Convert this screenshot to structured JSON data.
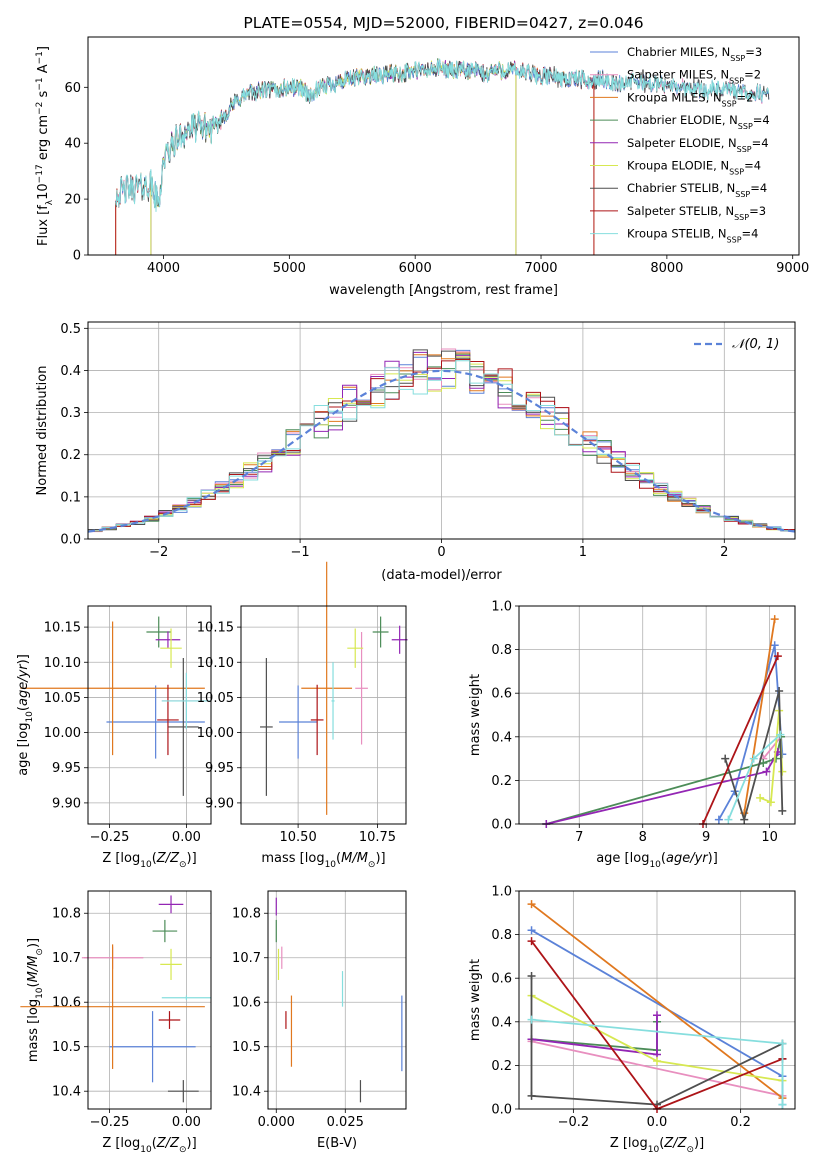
{
  "colors": {
    "s0": "#5b82d8",
    "s1": "#e88fbf",
    "s2": "#e0781f",
    "s3": "#4c8c58",
    "s4": "#9326b4",
    "s5": "#d7e851",
    "s6": "#4f4f4f",
    "s7": "#ad1418",
    "s8": "#86dede",
    "gauss": "#5b82d8"
  },
  "chart_data": [
    {
      "id": "spectrum",
      "type": "line",
      "title": "PLATE=0554, MJD=52000, FIBERID=0427, z=0.046",
      "xlabel": "wavelength [Angstrom, rest frame]",
      "ylabel": "Flux [f_λ 10^-17 erg cm^-2 s^-1 A^-1]",
      "xlim": [
        3400,
        9050
      ],
      "ylim": [
        0,
        78
      ],
      "xticks": [
        "4000",
        "5000",
        "6000",
        "7000",
        "8000",
        "9000"
      ],
      "yticks": [
        "0",
        "20",
        "40",
        "60"
      ],
      "grid": false,
      "legend_position": "top-right",
      "continuum": {
        "x": [
          3620,
          3750,
          3900,
          3960,
          4000,
          4100,
          4200,
          4300,
          4400,
          4500,
          4600,
          4700,
          4800,
          4900,
          5000,
          5100,
          5175,
          5200,
          5300,
          5400,
          5500,
          5600,
          5700,
          5800,
          5900,
          6000,
          6100,
          6200,
          6300,
          6400,
          6500,
          6563,
          6600,
          6700,
          6800,
          6900,
          7000,
          7100,
          7200,
          7300,
          7400,
          7500,
          7600,
          7700,
          7800,
          7900,
          8000,
          8100,
          8200,
          8300,
          8400,
          8500,
          8600,
          8700,
          8810
        ],
        "y": [
          22,
          24,
          25,
          18,
          34,
          41,
          45,
          46,
          45,
          51,
          56,
          58,
          59,
          59,
          60,
          60,
          56,
          58,
          61,
          62,
          63,
          64,
          64,
          65,
          65,
          66,
          66,
          67,
          66,
          66,
          66,
          64,
          66,
          66,
          66,
          65,
          64,
          64,
          63,
          63,
          62,
          63,
          61,
          62,
          62,
          61,
          61,
          60,
          60,
          59,
          59,
          59,
          58,
          58,
          57
        ]
      },
      "series": [
        {
          "name": "Chabrier MILES, N_SSP=3",
          "color": "s0"
        },
        {
          "name": "Salpeter MILES, N_SSP=2",
          "color": "s1"
        },
        {
          "name": "Kroupa MILES, N_SSP=2",
          "color": "s2",
          "range": [
            3620,
            7420
          ]
        },
        {
          "name": "Chabrier ELODIE, N_SSP=4",
          "color": "s3",
          "range": [
            3900,
            6800
          ]
        },
        {
          "name": "Salpeter ELODIE, N_SSP=4",
          "color": "s4",
          "range": [
            3900,
            6800
          ]
        },
        {
          "name": "Kroupa ELODIE, N_SSP=4",
          "color": "s5",
          "range": [
            3900,
            6800
          ]
        },
        {
          "name": "Chabrier STELIB, N_SSP=4",
          "color": "s6"
        },
        {
          "name": "Salpeter STELIB, N_SSP=3",
          "color": "s7",
          "range": [
            3620,
            7420
          ]
        },
        {
          "name": "Kroupa STELIB, N_SSP=4",
          "color": "s8"
        }
      ]
    },
    {
      "id": "residuals",
      "type": "histogram",
      "xlabel": "(data-model)/error",
      "ylabel": "Normed distribution",
      "xlim": [
        -2.5,
        2.5
      ],
      "ylim": [
        0,
        0.515
      ],
      "xticks": [
        "−2",
        "−1",
        "0",
        "1",
        "2"
      ],
      "yticks": [
        "0.0",
        "0.1",
        "0.2",
        "0.3",
        "0.4",
        "0.5"
      ],
      "bin_width": 0.1,
      "grid": true,
      "legend_position": "top-right",
      "legend": "𝒩(0, 1)",
      "series_colors": [
        "s0",
        "s1",
        "s2",
        "s3",
        "s4",
        "s5",
        "s6",
        "s7",
        "s8"
      ]
    },
    {
      "id": "age-vs-Z",
      "type": "errorbar",
      "xlabel": "Z [log10(Z/Z⊙)]",
      "ylabel": "age  [log10(age/yr)]",
      "xlim": [
        -0.32,
        0.08
      ],
      "ylim": [
        9.87,
        10.18
      ],
      "xticks": [
        "−0.25",
        "0.00"
      ],
      "yticks": [
        "9.90",
        "9.95",
        "10.00",
        "10.05",
        "10.10",
        "10.15"
      ],
      "grid": true,
      "points": [
        {
          "color": "s0",
          "x": -0.1,
          "xerr": 0.16,
          "y": 10.015,
          "yerr": 0.052
        },
        {
          "color": "s1",
          "x": 0.0,
          "xerr": 0.08,
          "y": 10.045,
          "yerr": 0.04
        },
        {
          "color": "s2",
          "x": -0.24,
          "xerr": 0.3,
          "y": 10.063,
          "yerr": 0.095
        },
        {
          "color": "s3",
          "x": -0.09,
          "xerr": 0.04,
          "y": 10.143,
          "yerr": 0.022
        },
        {
          "color": "s4",
          "x": -0.06,
          "xerr": 0.04,
          "y": 10.132,
          "yerr": 0.012
        },
        {
          "color": "s5",
          "x": -0.05,
          "xerr": 0.035,
          "y": 10.12,
          "yerr": 0.028
        },
        {
          "color": "s6",
          "x": -0.01,
          "xerr": 0.05,
          "y": 10.008,
          "yerr": 0.098
        },
        {
          "color": "s7",
          "x": -0.06,
          "xerr": 0.035,
          "y": 10.018,
          "yerr": 0.05
        },
        {
          "color": "s8",
          "x": 0.0,
          "xerr": 0.08,
          "y": 10.045,
          "yerr": 0.04
        }
      ]
    },
    {
      "id": "age-vs-mass",
      "type": "errorbar",
      "xlabel": "mass [log10(M/M⊙)]",
      "ylabel": "",
      "xlim": [
        10.32,
        10.84
      ],
      "ylim": [
        9.87,
        10.18
      ],
      "xticks": [
        "10.50",
        "10.75"
      ],
      "yticks": [
        "9.90",
        "9.95",
        "10.00",
        "10.05",
        "10.10",
        "10.15"
      ],
      "grid": true,
      "points": [
        {
          "color": "s0",
          "x": 10.5,
          "xerr": 0.06,
          "y": 10.015,
          "yerr": 0.052
        },
        {
          "color": "s1",
          "x": 10.7,
          "xerr": 0.02,
          "y": 10.063,
          "yerr": 0.08
        },
        {
          "color": "s2",
          "x": 10.59,
          "xerr": 0.08,
          "y": 10.063,
          "yerr": 0.18
        },
        {
          "color": "s3",
          "x": 10.76,
          "xerr": 0.025,
          "y": 10.143,
          "yerr": 0.022
        },
        {
          "color": "s4",
          "x": 10.82,
          "xerr": 0.025,
          "y": 10.132,
          "yerr": 0.02
        },
        {
          "color": "s5",
          "x": 10.68,
          "xerr": 0.025,
          "y": 10.12,
          "yerr": 0.028
        },
        {
          "color": "s6",
          "x": 10.4,
          "xerr": 0.02,
          "y": 10.008,
          "yerr": 0.098
        },
        {
          "color": "s7",
          "x": 10.56,
          "xerr": 0.02,
          "y": 10.018,
          "yerr": 0.05
        },
        {
          "color": "s8",
          "x": 10.61,
          "xerr": 0.005,
          "y": 10.045,
          "yerr": 0.055
        }
      ]
    },
    {
      "id": "mass-weight-vs-age",
      "type": "line",
      "xlabel": "age  [log10(age/yr)]",
      "ylabel": "mass weight",
      "xlim": [
        6.05,
        10.4
      ],
      "ylim": [
        0,
        1
      ],
      "xticks": [
        "7",
        "8",
        "9",
        "10"
      ],
      "yticks": [
        "0.0",
        "0.2",
        "0.4",
        "0.6",
        "0.8",
        "1.0"
      ],
      "grid": true,
      "series": [
        {
          "color": "s0",
          "x": [
            9.2,
            9.45,
            10.08,
            10.2
          ],
          "y": [
            0.02,
            0.15,
            0.82,
            0.32
          ]
        },
        {
          "color": "s1",
          "x": [
            9.9,
            10.18
          ],
          "y": [
            0.3,
            0.4
          ]
        },
        {
          "color": "s2",
          "x": [
            9.6,
            10.08
          ],
          "y": [
            0.05,
            0.94
          ]
        },
        {
          "color": "s3",
          "x": [
            6.48,
            9.9,
            10.1,
            10.18
          ],
          "y": [
            0.0,
            0.28,
            0.3,
            0.4
          ]
        },
        {
          "color": "s4",
          "x": [
            6.48,
            9.95,
            10.13
          ],
          "y": [
            0.0,
            0.24,
            0.33
          ]
        },
        {
          "color": "s5",
          "x": [
            9.85,
            10.02,
            10.15,
            10.2
          ],
          "y": [
            0.12,
            0.1,
            0.52,
            0.24
          ]
        },
        {
          "color": "s6",
          "x": [
            9.3,
            9.6,
            10.15,
            10.2
          ],
          "y": [
            0.3,
            0.02,
            0.61,
            0.06
          ]
        },
        {
          "color": "s7",
          "x": [
            8.95,
            10.13
          ],
          "y": [
            0.0,
            0.77
          ]
        },
        {
          "color": "s8",
          "x": [
            9.35,
            9.75,
            10.17
          ],
          "y": [
            0.02,
            0.3,
            0.41
          ]
        }
      ]
    },
    {
      "id": "mass-vs-Z",
      "type": "errorbar",
      "xlabel": "Z [log10(Z/Z⊙)]",
      "ylabel": "mass [log10(M/M⊙)]",
      "xlim": [
        -0.32,
        0.08
      ],
      "ylim": [
        10.36,
        10.85
      ],
      "xticks": [
        "−0.25",
        "0.00"
      ],
      "yticks": [
        "10.4",
        "10.5",
        "10.6",
        "10.7",
        "10.8"
      ],
      "grid": true,
      "points": [
        {
          "color": "s0",
          "x": -0.11,
          "xerr": 0.14,
          "y": 10.5,
          "yerr": 0.08
        },
        {
          "color": "s1",
          "x": -0.24,
          "xerr": 0.1,
          "y": 10.7,
          "yerr": 0.025
        },
        {
          "color": "s2",
          "x": -0.24,
          "xerr": 0.3,
          "y": 10.59,
          "yerr": 0.14
        },
        {
          "color": "s3",
          "x": -0.07,
          "xerr": 0.04,
          "y": 10.76,
          "yerr": 0.025
        },
        {
          "color": "s4",
          "x": -0.05,
          "xerr": 0.04,
          "y": 10.82,
          "yerr": 0.02
        },
        {
          "color": "s5",
          "x": -0.05,
          "xerr": 0.035,
          "y": 10.685,
          "yerr": 0.035
        },
        {
          "color": "s6",
          "x": -0.01,
          "xerr": 0.05,
          "y": 10.4,
          "yerr": 0.025
        },
        {
          "color": "s7",
          "x": -0.055,
          "xerr": 0.035,
          "y": 10.56,
          "yerr": 0.02
        },
        {
          "color": "s8",
          "x": 0.0,
          "xerr": 0.08,
          "y": 10.61,
          "yerr": 0.005
        }
      ]
    },
    {
      "id": "mass-vs-EBV",
      "type": "errorbar",
      "xlabel": "E(B-V)",
      "ylabel": "",
      "xlim": [
        -0.003,
        0.047
      ],
      "ylim": [
        10.36,
        10.85
      ],
      "xticks": [
        "0.000",
        "0.025"
      ],
      "yticks": [
        "10.4",
        "10.5",
        "10.6",
        "10.7",
        "10.8"
      ],
      "grid": true,
      "points": [
        {
          "color": "s0",
          "x": 0.0455,
          "xerr": 0.0,
          "y": 10.53,
          "yerr": 0.085
        },
        {
          "color": "s1",
          "x": 0.002,
          "xerr": 0.0,
          "y": 10.7,
          "yerr": 0.025
        },
        {
          "color": "s2",
          "x": 0.0055,
          "xerr": 0.0,
          "y": 10.535,
          "yerr": 0.08
        },
        {
          "color": "s3",
          "x": 0.0,
          "xerr": 0.0,
          "y": 10.76,
          "yerr": 0.025
        },
        {
          "color": "s4",
          "x": 0.0,
          "xerr": 0.0,
          "y": 10.815,
          "yerr": 0.02
        },
        {
          "color": "s5",
          "x": 0.0008,
          "xerr": 0.0,
          "y": 10.685,
          "yerr": 0.035
        },
        {
          "color": "s6",
          "x": 0.0305,
          "xerr": 0.0,
          "y": 10.4,
          "yerr": 0.025
        },
        {
          "color": "s7",
          "x": 0.0035,
          "xerr": 0.0,
          "y": 10.56,
          "yerr": 0.02
        },
        {
          "color": "s8",
          "x": 0.024,
          "xerr": 0.0,
          "y": 10.63,
          "yerr": 0.04
        }
      ]
    },
    {
      "id": "mass-weight-vs-Z",
      "type": "line",
      "xlabel": "Z [log10(Z/Z⊙)]",
      "ylabel": "mass weight",
      "xlim": [
        -0.33,
        0.33
      ],
      "ylim": [
        0,
        1
      ],
      "xticks": [
        "−0.2",
        "0.0",
        "0.2"
      ],
      "yticks": [
        "0.0",
        "0.2",
        "0.4",
        "0.6",
        "0.8",
        "1.0"
      ],
      "grid": true,
      "series": [
        {
          "color": "s0",
          "x": [
            -0.3,
            0.3,
            0.3
          ],
          "y": [
            0.82,
            0.15,
            0.02
          ]
        },
        {
          "color": "s1",
          "x": [
            -0.3,
            0.3
          ],
          "y": [
            0.31,
            0.06
          ]
        },
        {
          "color": "s2",
          "x": [
            -0.3,
            0.3
          ],
          "y": [
            0.94,
            0.05
          ]
        },
        {
          "color": "s3",
          "x": [
            -0.3,
            0.0,
            0.0
          ],
          "y": [
            0.32,
            0.27,
            0.4
          ]
        },
        {
          "color": "s4",
          "x": [
            -0.3,
            0.0,
            0.0
          ],
          "y": [
            0.32,
            0.25,
            0.43
          ]
        },
        {
          "color": "s5",
          "x": [
            -0.3,
            0.0,
            0.3
          ],
          "y": [
            0.52,
            0.22,
            0.13
          ]
        },
        {
          "color": "s6",
          "x": [
            -0.3,
            -0.3,
            0.0,
            0.3,
            0.3
          ],
          "y": [
            0.61,
            0.06,
            0.02,
            0.3,
            0.23
          ]
        },
        {
          "color": "s7",
          "x": [
            -0.3,
            0.0,
            0.3
          ],
          "y": [
            0.77,
            0.0,
            0.23
          ]
        },
        {
          "color": "s8",
          "x": [
            -0.3,
            0.3,
            0.3
          ],
          "y": [
            0.41,
            0.3,
            0.02
          ]
        }
      ]
    }
  ]
}
